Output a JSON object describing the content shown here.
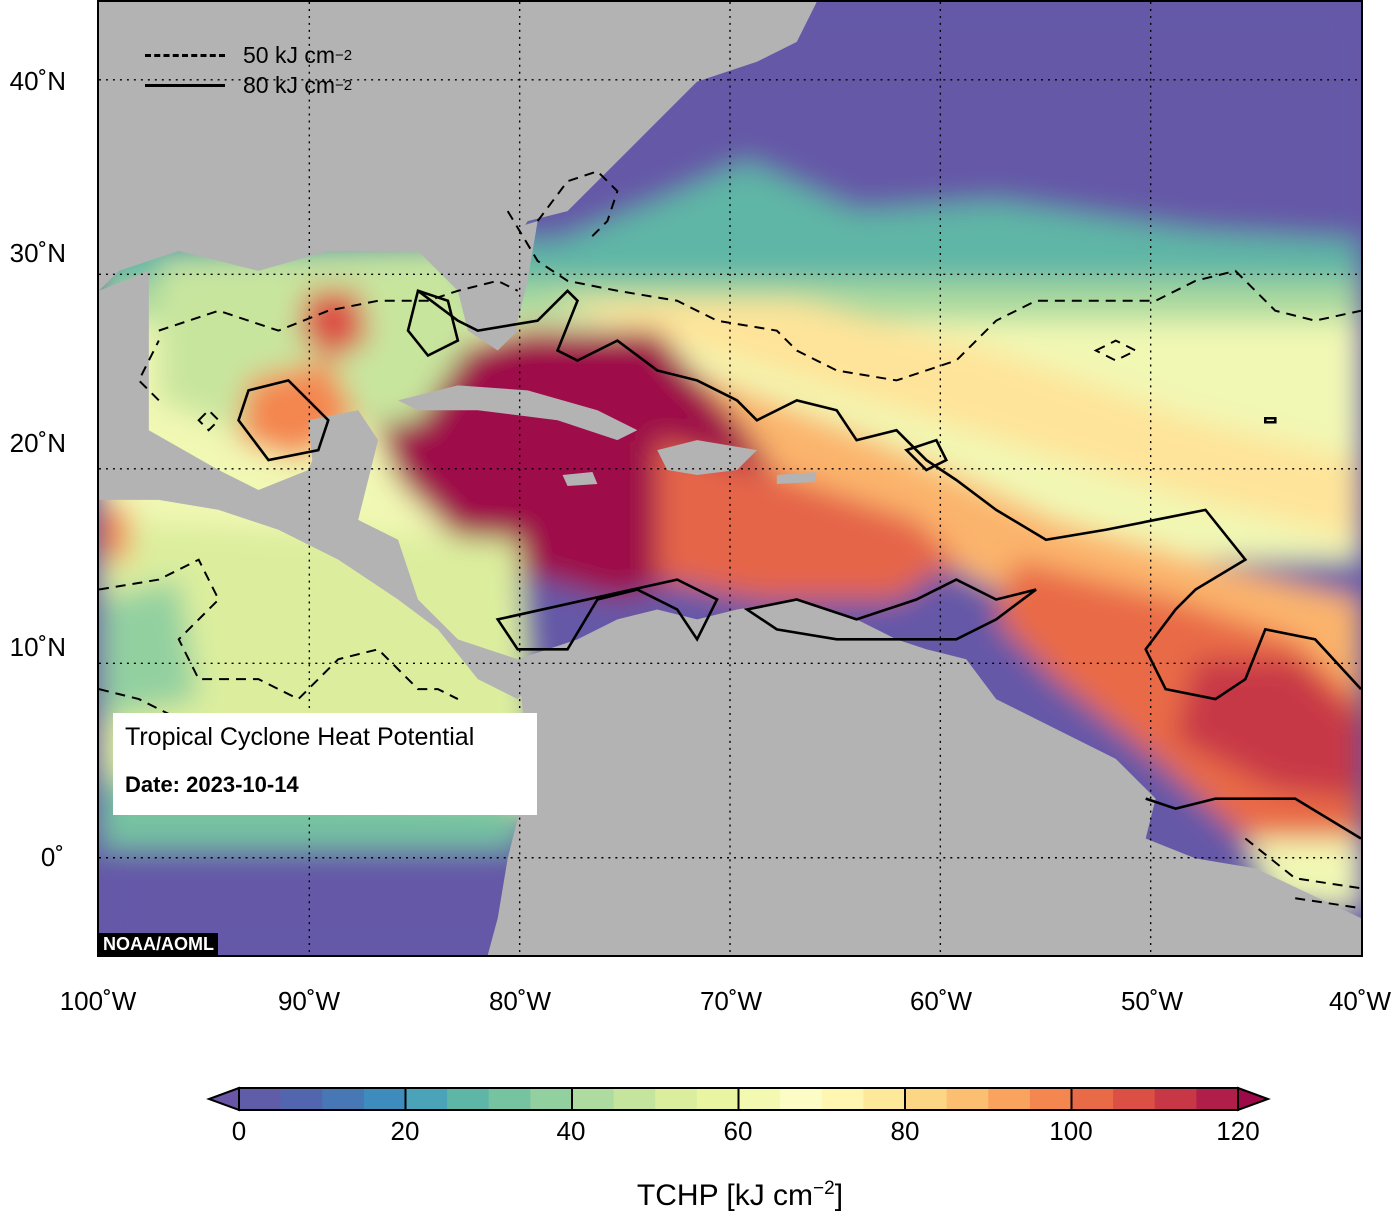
{
  "map": {
    "title": "Tropical Cyclone Heat Potential",
    "date_label": "Date: 2023-10-14",
    "credit": "NOAA/AOML",
    "lat_labels": [
      "40˚N",
      "30˚N",
      "20˚N",
      "10˚N",
      "0˚"
    ],
    "lon_labels": [
      "100˚W",
      "90˚W",
      "80˚W",
      "70˚W",
      "60˚W",
      "50˚W",
      "40˚W"
    ],
    "extent": {
      "lon_min": -100,
      "lon_max": -40,
      "lat_min": -5,
      "lat_max": 44
    },
    "land_color": "#b3b3b3",
    "gridlines": "dotted"
  },
  "legend": {
    "dashed_label": "50 kJ cm",
    "dashed_exp": "−2",
    "solid_label": "80 kJ cm",
    "solid_exp": "−2"
  },
  "colorbar": {
    "ticks": [
      "0",
      "20",
      "40",
      "60",
      "80",
      "100",
      "120"
    ],
    "label": "TCHP [kJ cm",
    "label_exp": "−2",
    "label_close": "]",
    "range": [
      0,
      120
    ],
    "step": 5,
    "colors": [
      "#6a56a6",
      "#5f5ca8",
      "#5166ae",
      "#4777b5",
      "#3d8cbd",
      "#4aa3b8",
      "#5eb7a6",
      "#76c3a1",
      "#93d0a0",
      "#aedb9f",
      "#c5e49d",
      "#dbee9e",
      "#eaf5a1",
      "#f3f9b1",
      "#fbfdc5",
      "#fef6b1",
      "#fee99a",
      "#fdd685",
      "#fcbe70",
      "#faa35e",
      "#f4864f",
      "#e96a46",
      "#db4f45",
      "#c73746",
      "#b01f4a",
      "#9e0a48"
    ],
    "under_color": "#6a56a6",
    "over_color": "#9e0a48"
  }
}
